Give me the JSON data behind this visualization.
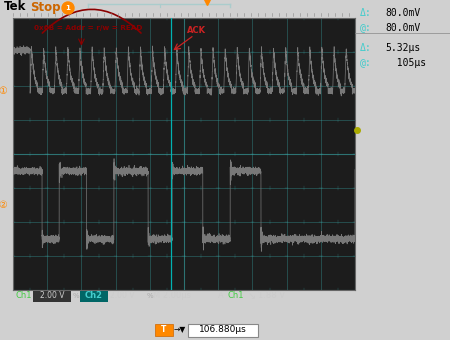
{
  "screen_bg": "#1c1c1c",
  "outer_bg": "#d0d0d0",
  "grid_color": "#3aacac",
  "annotation_color": "#8b0000",
  "ack_color": "#cc2222",
  "right_texts_line1": [
    "Δ:",
    "80.0mV"
  ],
  "right_texts_line2": [
    "@:",
    "80.0mV"
  ],
  "right_texts_line3": [
    "Δ:",
    "5.32μs"
  ],
  "right_texts_line4": [
    "@:",
    "  105μs"
  ],
  "bottom_text": "106.880μs",
  "ch1_label_color": "#44cc44",
  "ch2_label_color": "#44cccc",
  "ch2_bg_color": "#006666",
  "meas_color": "#cccccc",
  "waveform_color": "#787878",
  "marker_color": "#ff8800"
}
